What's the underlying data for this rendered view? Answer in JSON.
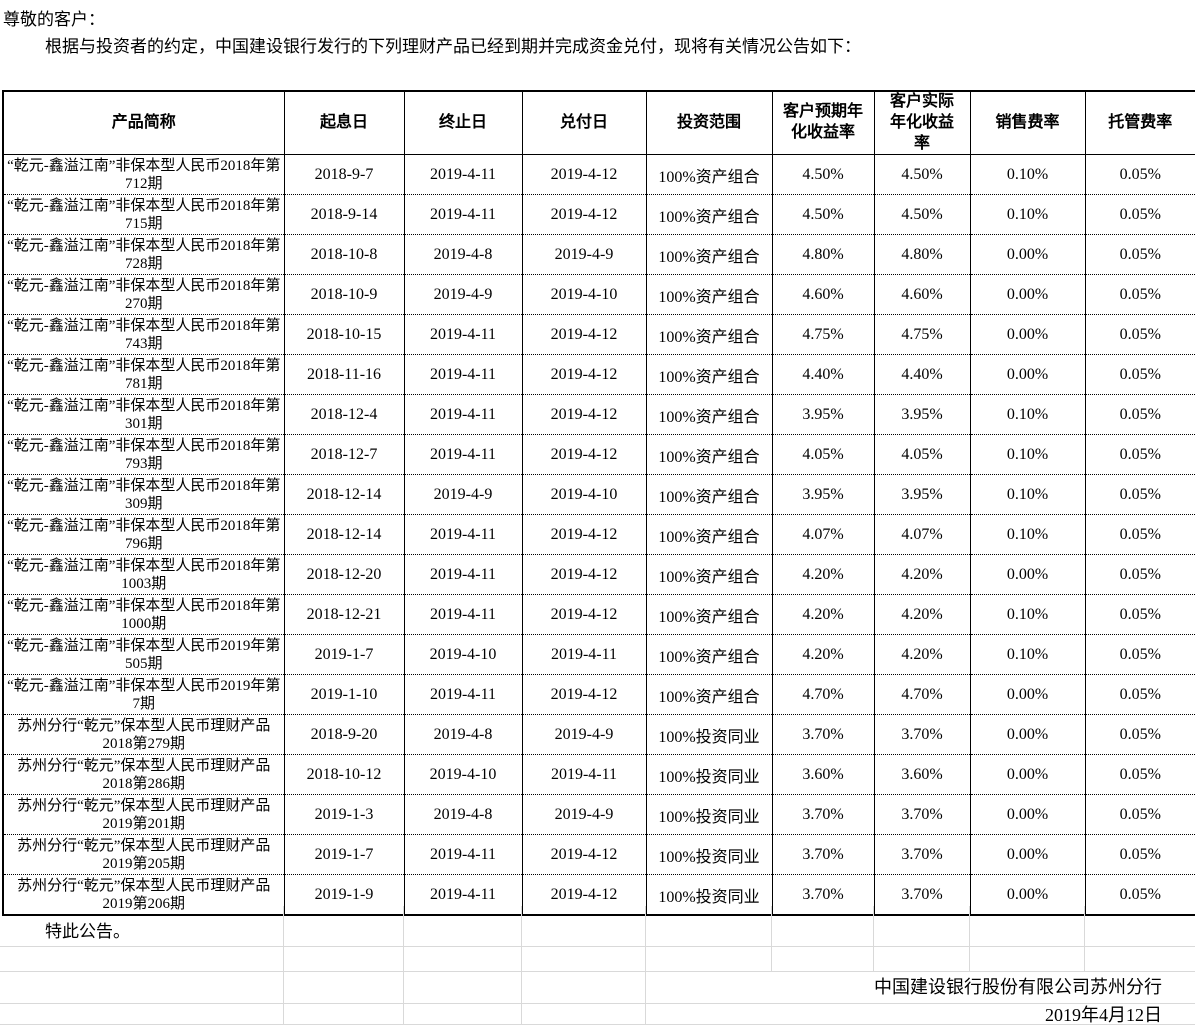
{
  "document": {
    "salutation": "尊敬的客户：",
    "intro": "根据与投资者的约定，中国建设银行发行的下列理财产品已经到期并完成资金兑付，现将有关情况公告如下：",
    "closing": "特此公告。",
    "issuer": "中国建设银行股份有限公司苏州分行",
    "date": "2019年4月12日"
  },
  "colors": {
    "table_border": "#000000",
    "grid_line": "#d9d9d9"
  },
  "table": {
    "headers": [
      "产品简称",
      "起息日",
      "终止日",
      "兑付日",
      "投资范围",
      "客户预期年化收益率",
      "客户实际年化收益率",
      "销售费率",
      "托管费率"
    ],
    "rows": [
      [
        "“乾元-鑫溢江南”非保本型人民币2018年第712期",
        "2018-9-7",
        "2019-4-11",
        "2019-4-12",
        "100%资产组合",
        "4.50%",
        "4.50%",
        "0.10%",
        "0.05%"
      ],
      [
        "“乾元-鑫溢江南”非保本型人民币2018年第715期",
        "2018-9-14",
        "2019-4-11",
        "2019-4-12",
        "100%资产组合",
        "4.50%",
        "4.50%",
        "0.10%",
        "0.05%"
      ],
      [
        "“乾元-鑫溢江南”非保本型人民币2018年第728期",
        "2018-10-8",
        "2019-4-8",
        "2019-4-9",
        "100%资产组合",
        "4.80%",
        "4.80%",
        "0.00%",
        "0.05%"
      ],
      [
        "“乾元-鑫溢江南”非保本型人民币2018年第270期",
        "2018-10-9",
        "2019-4-9",
        "2019-4-10",
        "100%资产组合",
        "4.60%",
        "4.60%",
        "0.00%",
        "0.05%"
      ],
      [
        "“乾元-鑫溢江南”非保本型人民币2018年第743期",
        "2018-10-15",
        "2019-4-11",
        "2019-4-12",
        "100%资产组合",
        "4.75%",
        "4.75%",
        "0.00%",
        "0.05%"
      ],
      [
        "“乾元-鑫溢江南”非保本型人民币2018年第781期",
        "2018-11-16",
        "2019-4-11",
        "2019-4-12",
        "100%资产组合",
        "4.40%",
        "4.40%",
        "0.00%",
        "0.05%"
      ],
      [
        "“乾元-鑫溢江南”非保本型人民币2018年第301期",
        "2018-12-4",
        "2019-4-11",
        "2019-4-12",
        "100%资产组合",
        "3.95%",
        "3.95%",
        "0.10%",
        "0.05%"
      ],
      [
        "“乾元-鑫溢江南”非保本型人民币2018年第793期",
        "2018-12-7",
        "2019-4-11",
        "2019-4-12",
        "100%资产组合",
        "4.05%",
        "4.05%",
        "0.10%",
        "0.05%"
      ],
      [
        "“乾元-鑫溢江南”非保本型人民币2018年第309期",
        "2018-12-14",
        "2019-4-9",
        "2019-4-10",
        "100%资产组合",
        "3.95%",
        "3.95%",
        "0.10%",
        "0.05%"
      ],
      [
        "“乾元-鑫溢江南”非保本型人民币2018年第796期",
        "2018-12-14",
        "2019-4-11",
        "2019-4-12",
        "100%资产组合",
        "4.07%",
        "4.07%",
        "0.10%",
        "0.05%"
      ],
      [
        "“乾元-鑫溢江南”非保本型人民币2018年第1003期",
        "2018-12-20",
        "2019-4-11",
        "2019-4-12",
        "100%资产组合",
        "4.20%",
        "4.20%",
        "0.00%",
        "0.05%"
      ],
      [
        "“乾元-鑫溢江南”非保本型人民币2018年第1000期",
        "2018-12-21",
        "2019-4-11",
        "2019-4-12",
        "100%资产组合",
        "4.20%",
        "4.20%",
        "0.10%",
        "0.05%"
      ],
      [
        "“乾元-鑫溢江南”非保本型人民币2019年第505期",
        "2019-1-7",
        "2019-4-10",
        "2019-4-11",
        "100%资产组合",
        "4.20%",
        "4.20%",
        "0.10%",
        "0.05%"
      ],
      [
        "“乾元-鑫溢江南”非保本型人民币2019年第7期",
        "2019-1-10",
        "2019-4-11",
        "2019-4-12",
        "100%资产组合",
        "4.70%",
        "4.70%",
        "0.00%",
        "0.05%"
      ],
      [
        "苏州分行“乾元”保本型人民币理财产品2018第279期",
        "2018-9-20",
        "2019-4-8",
        "2019-4-9",
        "100%投资同业",
        "3.70%",
        "3.70%",
        "0.00%",
        "0.05%"
      ],
      [
        "苏州分行“乾元”保本型人民币理财产品2018第286期",
        "2018-10-12",
        "2019-4-10",
        "2019-4-11",
        "100%投资同业",
        "3.60%",
        "3.60%",
        "0.00%",
        "0.05%"
      ],
      [
        "苏州分行“乾元”保本型人民币理财产品2019第201期",
        "2019-1-3",
        "2019-4-8",
        "2019-4-9",
        "100%投资同业",
        "3.70%",
        "3.70%",
        "0.00%",
        "0.05%"
      ],
      [
        "苏州分行“乾元”保本型人民币理财产品2019第205期",
        "2019-1-7",
        "2019-4-11",
        "2019-4-12",
        "100%投资同业",
        "3.70%",
        "3.70%",
        "0.00%",
        "0.05%"
      ],
      [
        "苏州分行“乾元”保本型人民币理财产品2019第206期",
        "2019-1-9",
        "2019-4-11",
        "2019-4-12",
        "100%投资同业",
        "3.70%",
        "3.70%",
        "0.00%",
        "0.05%"
      ]
    ]
  }
}
